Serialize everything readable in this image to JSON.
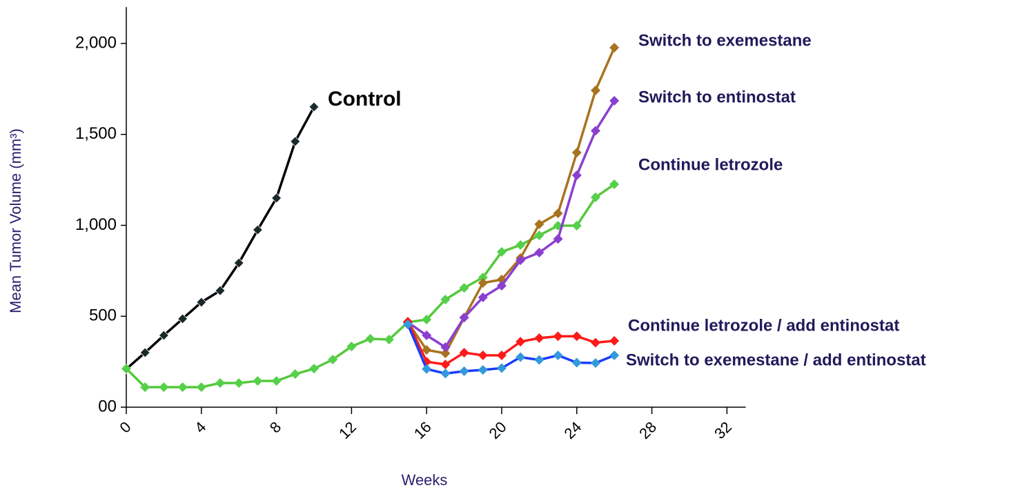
{
  "chart_data": {
    "type": "line",
    "xlabel": "Weeks",
    "ylabel": "Mean Tumor Volume (mm³)",
    "xlim": [
      0,
      33
    ],
    "xticks": [
      0,
      4,
      8,
      12,
      16,
      20,
      24,
      28,
      32
    ],
    "ylim": [
      0,
      2200
    ],
    "yticks": [
      {
        "value": 0,
        "label": "00"
      },
      500,
      {
        "value": 1000,
        "label": "1,000"
      },
      {
        "value": 1500,
        "label": "1,500"
      },
      {
        "value": 2000,
        "label": "2,000"
      }
    ],
    "series": [
      {
        "name": "Control",
        "color": "#000000",
        "marker_color": "#1a2a2a",
        "x": [
          0,
          1,
          2,
          3,
          4,
          5,
          6,
          7,
          8,
          9,
          10
        ],
        "values": [
          210,
          300,
          395,
          486,
          577,
          641,
          793,
          975,
          1150,
          1461,
          1651
        ]
      },
      {
        "name": "Continue letrozole",
        "color": "#55c83a",
        "marker_color": "#55d04a",
        "x": [
          0,
          1,
          2,
          3,
          4,
          5,
          6,
          7,
          8,
          9,
          10,
          11,
          12,
          13,
          14,
          15,
          16,
          17,
          18,
          19,
          20,
          21,
          22,
          23,
          24,
          25,
          26
        ],
        "values": [
          212,
          110,
          110,
          110,
          110,
          133,
          133,
          144,
          144,
          182,
          212,
          262,
          334,
          376,
          372,
          467,
          482,
          592,
          656,
          713,
          854,
          892,
          945,
          998,
          998,
          1154,
          1226
        ]
      },
      {
        "name": "Switch to exemestane",
        "color": "#a8731f",
        "marker_color": "#a8731f",
        "x": [
          15,
          16,
          17,
          18,
          19,
          20,
          21,
          22,
          23,
          24,
          25,
          26
        ],
        "values": [
          467,
          315,
          296,
          493,
          683,
          702,
          820,
          1006,
          1066,
          1400,
          1742,
          1977
        ]
      },
      {
        "name": "Switch to entinostat",
        "color": "#8a3fd0",
        "marker_color": "#8a3fd0",
        "x": [
          15,
          16,
          17,
          18,
          19,
          20,
          21,
          22,
          23,
          24,
          25,
          26
        ],
        "values": [
          467,
          395,
          330,
          493,
          604,
          668,
          808,
          850,
          925,
          1275,
          1520,
          1685
        ]
      },
      {
        "name": "Continue letrozole / add entinostat",
        "color": "#ff1a1a",
        "marker_color": "#ff1a1a",
        "x": [
          15,
          16,
          17,
          18,
          19,
          20,
          21,
          22,
          23,
          24,
          25,
          26
        ],
        "values": [
          470,
          250,
          235,
          300,
          285,
          285,
          360,
          380,
          390,
          390,
          355,
          365
        ]
      },
      {
        "name": "Switch to exemestane / add entinostat",
        "color": "#1a3cff",
        "marker_color": "#3399dd",
        "x": [
          15,
          16,
          17,
          18,
          19,
          20,
          21,
          22,
          23,
          24,
          25,
          26
        ],
        "values": [
          455,
          210,
          185,
          198,
          205,
          215,
          275,
          260,
          285,
          245,
          243,
          285
        ]
      }
    ]
  }
}
